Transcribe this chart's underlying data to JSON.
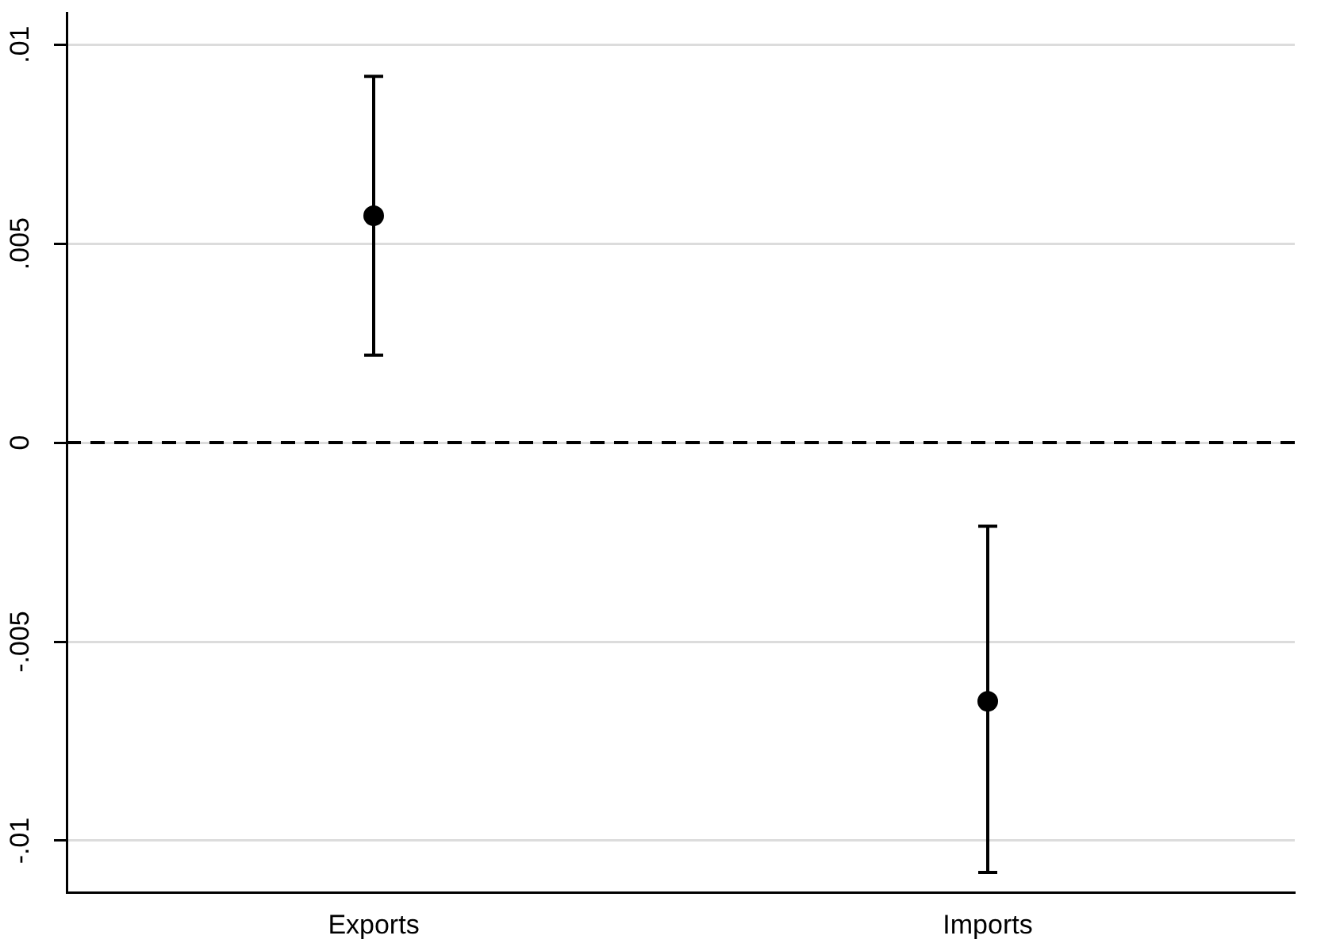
{
  "chart_data": {
    "type": "scatter",
    "categories": [
      "Exports",
      "Imports"
    ],
    "series": [
      {
        "color": "#000000",
        "values": [
          0.0057,
          -0.0065
        ],
        "errors": [
          [
            0.0022,
            0.0092
          ],
          [
            -0.0108,
            -0.0021
          ]
        ]
      }
    ],
    "ylim": [
      -0.0113,
      0.0108
    ],
    "yticks": [
      {
        "value": -0.01,
        "label": "-.01"
      },
      {
        "value": -0.005,
        "label": "-.005"
      },
      {
        "value": 0,
        "label": "0"
      },
      {
        "value": 0.005,
        "label": ".005"
      },
      {
        "value": 0.01,
        "label": ".01"
      }
    ],
    "ref_lines": [
      {
        "axis": "y",
        "value": 0,
        "color": "#000000",
        "line_style": "dashed"
      }
    ],
    "grid": "y",
    "legend": false,
    "marker": "circle"
  }
}
